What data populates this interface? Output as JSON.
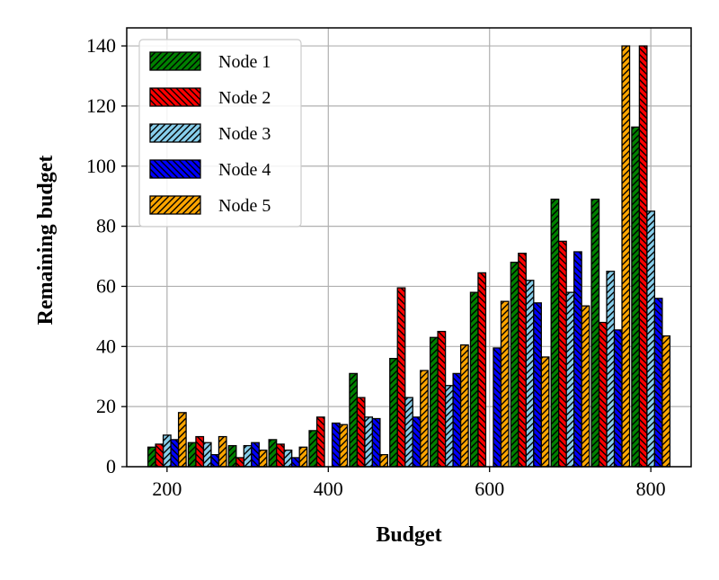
{
  "chart_data": {
    "type": "bar",
    "xlabel": "Budget",
    "ylabel": "Remaining budget",
    "xlim": [
      150,
      850
    ],
    "ylim": [
      0,
      146
    ],
    "xticks": [
      200,
      400,
      600,
      800
    ],
    "yticks": [
      0,
      20,
      40,
      60,
      80,
      100,
      120,
      140
    ],
    "grid": true,
    "legend_position": "top-left",
    "categories": [
      200,
      250,
      300,
      350,
      400,
      450,
      500,
      550,
      600,
      650,
      700,
      750,
      800
    ],
    "series": [
      {
        "name": "Node 1",
        "color": "#008000",
        "hatch": "up",
        "values": [
          6.5,
          8,
          7,
          9,
          12,
          31,
          36,
          43,
          58,
          68,
          89,
          89,
          113
        ]
      },
      {
        "name": "Node 2",
        "color": "#ff0000",
        "hatch": "down",
        "values": [
          7.5,
          10,
          3,
          7.5,
          16.5,
          23,
          59.5,
          45,
          64.5,
          71,
          75,
          48,
          140
        ]
      },
      {
        "name": "Node 3",
        "color": "#87ceeb",
        "hatch": "up",
        "values": [
          10.5,
          8,
          7,
          5.5,
          0,
          16.5,
          23,
          27,
          0,
          62,
          58,
          65,
          85
        ]
      },
      {
        "name": "Node 4",
        "color": "#0000ff",
        "hatch": "down",
        "values": [
          9,
          4,
          8,
          3,
          14.5,
          16,
          16.5,
          31,
          39.5,
          54.5,
          71.5,
          45.5,
          56
        ]
      },
      {
        "name": "Node 5",
        "color": "#ffa500",
        "hatch": "up",
        "values": [
          18,
          10,
          5.5,
          6.5,
          14,
          4,
          32,
          40.5,
          55,
          36.5,
          53.5,
          140,
          43.5
        ]
      }
    ]
  }
}
